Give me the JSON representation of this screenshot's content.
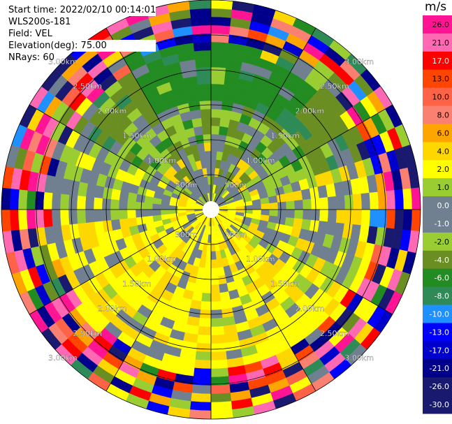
{
  "info": {
    "start_time": "Start time: 2022/02/10 00:14:01",
    "instrument": "WLS200s-181",
    "field": "Field: VEL",
    "elevation": "Elevation(deg): 75.00",
    "nrays": "NRays: 60"
  },
  "range_rings": {
    "labels": [
      "500m",
      "1.00km",
      "1.50km",
      "2.00km",
      "2.50km",
      "3.00km"
    ],
    "values_km": [
      0.5,
      1.0,
      1.5,
      2.0,
      2.5,
      3.0
    ]
  },
  "colorbar": {
    "unit": "m/s",
    "ticks": [
      "26.0",
      "21.0",
      "17.0",
      "13.0",
      "10.0",
      "8.0",
      "6.0",
      "4.0",
      "2.0",
      "1.0",
      "0.0",
      "-1.0",
      "-2.0",
      "-4.0",
      "-6.0",
      "-8.0",
      "-10.0",
      "-13.0",
      "-17.0",
      "-21.0",
      "-26.0",
      "-30.0"
    ],
    "colors": [
      "#ff1493",
      "#ff69b4",
      "#ff0000",
      "#ff4500",
      "#ff6347",
      "#fa8072",
      "#ffa500",
      "#ffd700",
      "#ffff00",
      "#9acd32",
      "#708090",
      "#708090",
      "#9acd32",
      "#6b8e23",
      "#228b22",
      "#2e8b57",
      "#1e90ff",
      "#0000ff",
      "#0000cd",
      "#00008b",
      "#191970",
      "#191970"
    ]
  },
  "chart_data": {
    "type": "heatmap",
    "projection": "polar (PPI)",
    "field": "VEL",
    "units": "m/s",
    "n_rays": 60,
    "range_max_km": 3.0,
    "color_scale": [
      -30,
      -26,
      -21,
      -17,
      -13,
      -10,
      -8,
      -6,
      -4,
      -2,
      -1,
      0,
      1,
      2,
      4,
      6,
      8,
      10,
      13,
      17,
      21,
      26
    ]
  }
}
